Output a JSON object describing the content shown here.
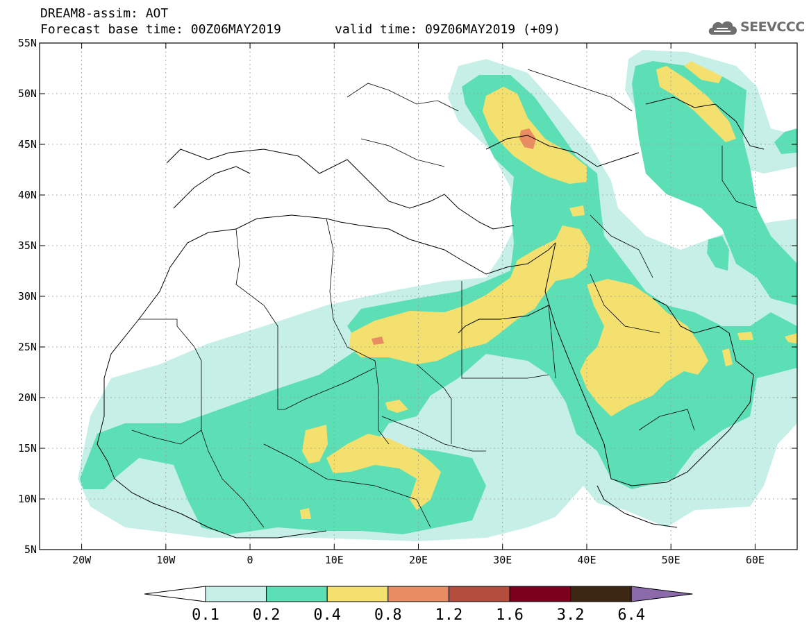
{
  "header": {
    "title_line1": "DREAM8-assim: AOT",
    "title_line2": "Forecast base time: 00Z06MAY2019",
    "valid_time": "valid time: 09Z06MAY2019 (+09)",
    "logo_text": "SEEVCCC",
    "logo_icon": "cloud-icon"
  },
  "map": {
    "variable": "AOT",
    "projection": "lat-lon",
    "lon_range": [
      -25,
      65
    ],
    "lat_range": [
      5,
      55
    ],
    "lon_ticks": [
      {
        "value": -20,
        "label": "20W"
      },
      {
        "value": -10,
        "label": "10W"
      },
      {
        "value": 0,
        "label": "0"
      },
      {
        "value": 10,
        "label": "10E"
      },
      {
        "value": 20,
        "label": "20E"
      },
      {
        "value": 30,
        "label": "30E"
      },
      {
        "value": 40,
        "label": "40E"
      },
      {
        "value": 50,
        "label": "50E"
      },
      {
        "value": 60,
        "label": "60E"
      }
    ],
    "lat_ticks": [
      {
        "value": 55,
        "label": "55N"
      },
      {
        "value": 50,
        "label": "50N"
      },
      {
        "value": 45,
        "label": "45N"
      },
      {
        "value": 40,
        "label": "40N"
      },
      {
        "value": 35,
        "label": "35N"
      },
      {
        "value": 30,
        "label": "30N"
      },
      {
        "value": 25,
        "label": "25N"
      },
      {
        "value": 20,
        "label": "20N"
      },
      {
        "value": 15,
        "label": "15N"
      },
      {
        "value": 10,
        "label": "10N"
      },
      {
        "value": 5,
        "label": "5N"
      }
    ],
    "grid": true,
    "colors": {
      "c01": "#c6efe8",
      "c02": "#5ddfb5",
      "c04": "#f4e06e",
      "c08": "#e98c64",
      "c12": "#b54d3e",
      "c16": "#7c001e",
      "c32": "#3c2614",
      "c64": "#8b6aab"
    }
  },
  "colorbar": {
    "labels": [
      "0.1",
      "0.2",
      "0.4",
      "0.8",
      "1.2",
      "1.6",
      "3.2",
      "6.4"
    ],
    "colors": [
      "#c6efe8",
      "#5ddfb5",
      "#f4e06e",
      "#e98c64",
      "#b54d3e",
      "#7c001e",
      "#3c2614"
    ],
    "under_color": "#ffffff",
    "over_color": "#8b6aab"
  }
}
